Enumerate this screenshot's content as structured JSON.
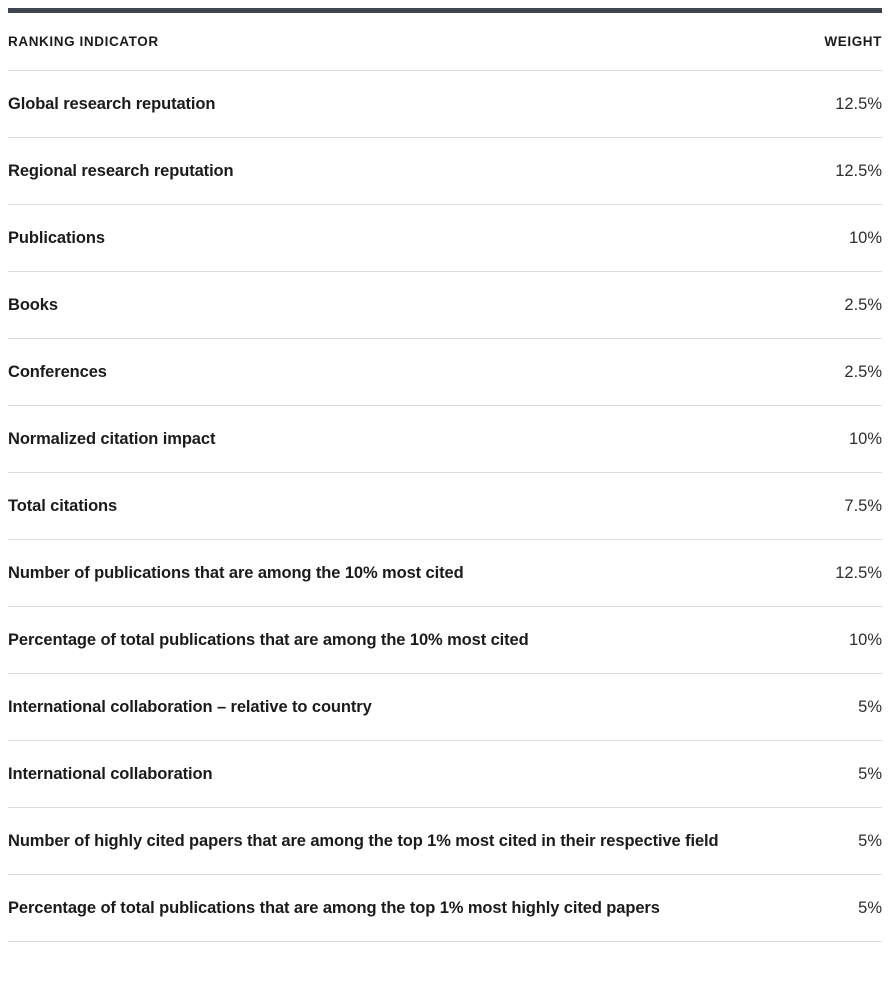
{
  "colors": {
    "top_bar": "#3e4450",
    "divider": "#d9dade",
    "label_text": "#1b1b1b",
    "value_text": "#2e2e2e"
  },
  "table": {
    "headers": {
      "indicator": "RANKING INDICATOR",
      "weight": "WEIGHT"
    },
    "rows": [
      {
        "indicator": "Global research reputation",
        "weight": "12.5%"
      },
      {
        "indicator": "Regional research reputation",
        "weight": "12.5%"
      },
      {
        "indicator": "Publications",
        "weight": "10%"
      },
      {
        "indicator": "Books",
        "weight": "2.5%"
      },
      {
        "indicator": "Conferences",
        "weight": "2.5%"
      },
      {
        "indicator": "Normalized citation impact",
        "weight": "10%"
      },
      {
        "indicator": "Total citations",
        "weight": "7.5%"
      },
      {
        "indicator": "Number of publications that are among the 10% most cited",
        "weight": "12.5%"
      },
      {
        "indicator": "Percentage of total publications that are among the 10% most cited",
        "weight": "10%"
      },
      {
        "indicator": "International collaboration – relative to country",
        "weight": "5%"
      },
      {
        "indicator": "International collaboration",
        "weight": "5%"
      },
      {
        "indicator": "Number of highly cited papers that are among the top 1% most cited in their respective field",
        "weight": "5%"
      },
      {
        "indicator": "Percentage of total publications that are among the top 1% most highly cited papers",
        "weight": "5%"
      }
    ]
  }
}
